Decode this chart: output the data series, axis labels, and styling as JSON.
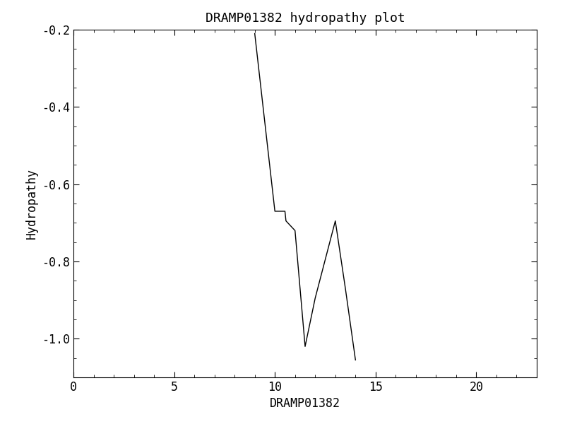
{
  "title": "DRAMP01382 hydropathy plot",
  "xlabel": "DRAMP01382",
  "ylabel": "Hydropathy",
  "x": [
    9.0,
    10.0,
    10.5,
    10.55,
    11.0,
    11.5,
    12.0,
    13.0,
    13.5,
    14.0
  ],
  "y": [
    -0.21,
    -0.67,
    -0.67,
    -0.695,
    -0.72,
    -1.02,
    -0.895,
    -0.695,
    -0.87,
    -1.055
  ],
  "xlim": [
    0,
    23
  ],
  "ylim": [
    -1.1,
    -0.2
  ],
  "xticks": [
    0,
    5,
    10,
    15,
    20
  ],
  "yticks": [
    -1.0,
    -0.8,
    -0.6,
    -0.4,
    -0.2
  ],
  "line_color": "#000000",
  "line_width": 1.0,
  "bg_color": "#ffffff",
  "title_fontsize": 13,
  "label_fontsize": 12,
  "tick_fontsize": 12
}
